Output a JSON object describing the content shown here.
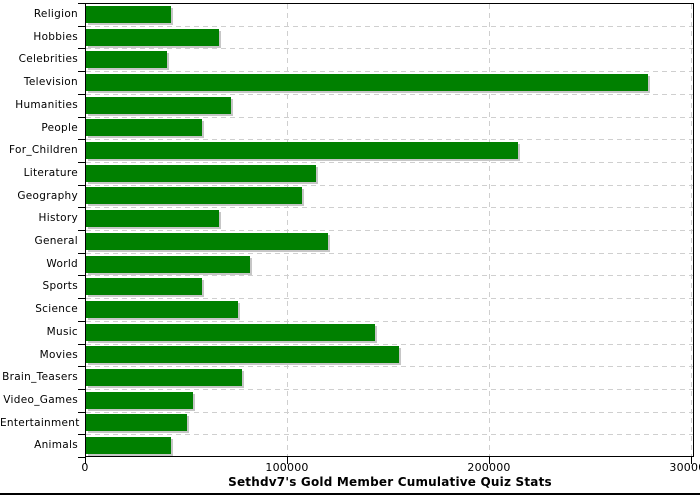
{
  "chart_data": {
    "type": "bar",
    "orientation": "horizontal",
    "title": "Sethdv7's Gold Member Cumulative Quiz Stats",
    "categories": [
      "Religion",
      "Hobbies",
      "Celebrities",
      "Television",
      "Humanities",
      "People",
      "For_Children",
      "Literature",
      "Geography",
      "History",
      "General",
      "World",
      "Sports",
      "Science",
      "Music",
      "Movies",
      "Brain_Teasers",
      "Video_Games",
      "Entertainment",
      "Animals"
    ],
    "values": [
      42000,
      66000,
      40000,
      278000,
      72000,
      57500,
      214000,
      114000,
      107000,
      66000,
      120000,
      81000,
      57500,
      75000,
      143000,
      155000,
      77000,
      53000,
      50000,
      42000
    ],
    "xlabel": "",
    "ylabel": "",
    "x_ticks": [
      0,
      100000,
      200000,
      300000
    ],
    "x_tick_labels": [
      "0",
      "100000",
      "200000",
      "300000"
    ],
    "xlim": [
      0,
      301500
    ],
    "grid": true,
    "legend": false,
    "colors": {
      "bar": "#008000",
      "bar_shadow": "#c6c6c6",
      "gridline": "#cfcfcf",
      "axis": "#000000",
      "text": "#000000",
      "background": "#ffffff"
    }
  }
}
